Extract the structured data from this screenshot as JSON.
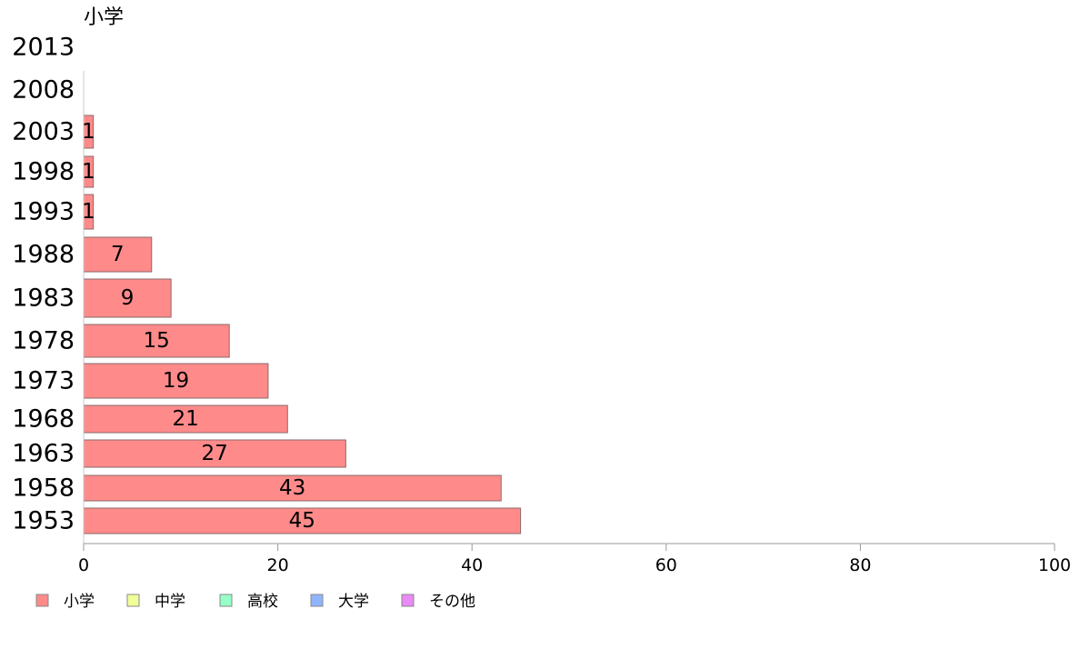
{
  "chart_data": {
    "type": "bar",
    "orientation": "horizontal",
    "title": "小学",
    "categories": [
      "2013",
      "2008",
      "2003",
      "1998",
      "1993",
      "1988",
      "1983",
      "1978",
      "1973",
      "1968",
      "1963",
      "1958",
      "1953"
    ],
    "series": [
      {
        "name": "小学",
        "color": "#ff8a8a",
        "values": [
          0,
          0,
          1,
          1,
          1,
          7,
          9,
          15,
          19,
          21,
          27,
          43,
          45
        ]
      }
    ],
    "data_labels": [
      "",
      "",
      "1",
      "1",
      "1",
      "7",
      "9",
      "15",
      "19",
      "21",
      "27",
      "43",
      "45"
    ],
    "xlim": [
      0,
      100
    ],
    "xticks": [
      0,
      20,
      40,
      60,
      80,
      100
    ],
    "grid": false,
    "legend": {
      "placement": "bottom-left",
      "items": [
        {
          "label": "小学",
          "color": "#ff8a8a"
        },
        {
          "label": "中学",
          "color": "#f2ff99"
        },
        {
          "label": "高校",
          "color": "#99ffc8"
        },
        {
          "label": "大学",
          "color": "#8fb5ff"
        },
        {
          "label": "その他",
          "color": "#e98af5"
        }
      ]
    }
  }
}
